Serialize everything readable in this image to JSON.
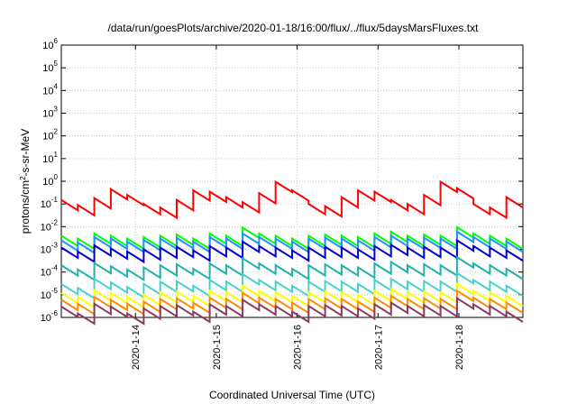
{
  "chart_data": {
    "type": "line",
    "title": "/data/run/goesPlots/archive/2020-01-18/16:00/flux/../flux/5daysMarsFluxes.txt",
    "xlabel": "Coordinated Universal Time (UTC)",
    "ylabel": "protons/cm²-s-sr-MeV",
    "ylabel_main": "protons/cm",
    "ylabel_sup": "2",
    "ylabel_rest": "-s-sr-MeV",
    "x_range": [
      "2020-01-13 02:00",
      "2020-01-18 19:00"
    ],
    "x_ticks": [
      "2020-1-14",
      "2020-1-15",
      "2020-1-16",
      "2020-1-17",
      "2020-1-18"
    ],
    "y_scale": "log",
    "y_range": [
      1e-06,
      1000000.0
    ],
    "y_ticks": [
      {
        "base": "10",
        "exp": "-6"
      },
      {
        "base": "10",
        "exp": "-5"
      },
      {
        "base": "10",
        "exp": "-4"
      },
      {
        "base": "10",
        "exp": "-3"
      },
      {
        "base": "10",
        "exp": "-2"
      },
      {
        "base": "10",
        "exp": "-1"
      },
      {
        "base": "10",
        "exp": "0"
      },
      {
        "base": "10",
        "exp": "1"
      },
      {
        "base": "10",
        "exp": "2"
      },
      {
        "base": "10",
        "exp": "3"
      },
      {
        "base": "10",
        "exp": "4"
      },
      {
        "base": "10",
        "exp": "5"
      },
      {
        "base": "10",
        "exp": "6"
      }
    ],
    "grid": true,
    "legend": "none",
    "series": [
      {
        "color": "#ff0000",
        "values": [
          0.15,
          0.09,
          0.18,
          0.45,
          0.25,
          0.1,
          0.07,
          0.15,
          0.4,
          0.35,
          0.2,
          0.12,
          0.3,
          0.95,
          0.4,
          0.1,
          0.08,
          0.2,
          0.4,
          0.35,
          0.15,
          0.1,
          0.25,
          0.95,
          0.5,
          0.1,
          0.07,
          0.2
        ]
      },
      {
        "color": "#00ff00",
        "values": [
          0.004,
          0.003,
          0.005,
          0.004,
          0.003,
          0.0035,
          0.004,
          0.0045,
          0.003,
          0.005,
          0.004,
          0.009,
          0.005,
          0.004,
          0.003,
          0.004,
          0.0045,
          0.004,
          0.0035,
          0.005,
          0.006,
          0.004,
          0.0045,
          0.004,
          0.0095,
          0.005,
          0.004,
          0.003
        ]
      },
      {
        "color": "#1e90ff",
        "values": [
          0.0025,
          0.002,
          0.0035,
          0.003,
          0.0022,
          0.0026,
          0.003,
          0.0032,
          0.0022,
          0.0035,
          0.003,
          0.005,
          0.0035,
          0.003,
          0.0022,
          0.003,
          0.0033,
          0.003,
          0.0025,
          0.0035,
          0.004,
          0.003,
          0.0033,
          0.003,
          0.006,
          0.0035,
          0.003,
          0.0022
        ]
      },
      {
        "color": "#0000cd",
        "values": [
          0.0012,
          0.0008,
          0.0015,
          0.0011,
          0.0008,
          0.001,
          0.0012,
          0.0013,
          0.0009,
          0.0014,
          0.0012,
          0.0022,
          0.0014,
          0.0012,
          0.0009,
          0.0012,
          0.0013,
          0.0012,
          0.001,
          0.0014,
          0.0016,
          0.0012,
          0.0013,
          0.0012,
          0.0025,
          0.0014,
          0.0012,
          0.0009
        ]
      },
      {
        "color": "#20b2aa",
        "values": [
          0.0002,
          0.00013,
          0.00025,
          0.00018,
          0.00013,
          0.00016,
          0.0002,
          0.00022,
          0.00014,
          0.00024,
          0.0002,
          0.0004,
          0.00024,
          0.0002,
          0.00014,
          0.0002,
          0.00022,
          0.0002,
          0.00016,
          0.00024,
          0.00028,
          0.0002,
          0.00022,
          0.0002,
          0.00045,
          0.00024,
          0.0002,
          0.00014
        ]
      },
      {
        "color": "#48d1cc",
        "values": [
          3e-05,
          2e-05,
          5e-05,
          3.5e-05,
          2.2e-05,
          3e-05,
          3.8e-05,
          4e-05,
          2.5e-05,
          4.5e-05,
          3.8e-05,
          8e-05,
          4.5e-05,
          3.8e-05,
          2.5e-05,
          3.8e-05,
          4e-05,
          3.8e-05,
          3e-05,
          4.5e-05,
          5e-05,
          3.8e-05,
          4e-05,
          3.8e-05,
          9e-05,
          4.5e-05,
          3.8e-05,
          2.5e-05
        ]
      },
      {
        "color": "#ffff00",
        "values": [
          1.2e-05,
          8e-06,
          1.6e-05,
          1.2e-05,
          8e-06,
          1e-05,
          1.3e-05,
          1.4e-05,
          9e-06,
          1.5e-05,
          1.3e-05,
          2.5e-05,
          1.5e-05,
          1.3e-05,
          9e-06,
          1.3e-05,
          1.4e-05,
          1.3e-05,
          1e-05,
          1.5e-05,
          1.8e-05,
          1.3e-05,
          1.4e-05,
          1.3e-05,
          3e-05,
          1.5e-05,
          1.3e-05,
          9e-06
        ]
      },
      {
        "color": "#ff8c00",
        "values": [
          6e-06,
          4e-06,
          8e-06,
          6e-06,
          4e-06,
          5e-06,
          6.5e-06,
          7e-06,
          4.5e-06,
          7.5e-06,
          6.5e-06,
          1.2e-05,
          7.5e-06,
          6.5e-06,
          4.5e-06,
          6.5e-06,
          7e-06,
          6.5e-06,
          5e-06,
          7.5e-06,
          9e-06,
          6.5e-06,
          7e-06,
          6.5e-06,
          1.5e-05,
          7.5e-06,
          6.5e-06,
          4.5e-06
        ]
      },
      {
        "color": "#8b3a62",
        "values": [
          3e-06,
          1.5e-06,
          4e-06,
          3e-06,
          1.5e-06,
          2.5e-06,
          3.2e-06,
          3.5e-06,
          1.8e-06,
          3.8e-06,
          3.2e-06,
          6e-06,
          3.8e-06,
          3.2e-06,
          1.8e-06,
          3.2e-06,
          3.5e-06,
          3.2e-06,
          2.5e-06,
          3.8e-06,
          4.5e-06,
          3.2e-06,
          3.5e-06,
          3.2e-06,
          7e-06,
          3.8e-06,
          3.2e-06,
          1.8e-06
        ]
      }
    ]
  }
}
